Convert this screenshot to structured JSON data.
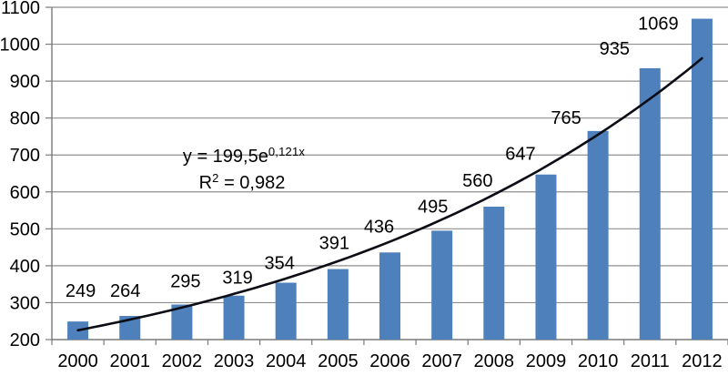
{
  "chart_data": {
    "type": "bar",
    "title": "",
    "xlabel": "",
    "ylabel": "",
    "categories": [
      "2000",
      "2001",
      "2002",
      "2003",
      "2004",
      "2005",
      "2006",
      "2007",
      "2008",
      "2009",
      "2010",
      "2011",
      "2012"
    ],
    "values": [
      249,
      264,
      295,
      319,
      354,
      391,
      436,
      495,
      560,
      647,
      765,
      935,
      1069
    ],
    "data_labels": [
      "249",
      "264",
      "295",
      "319",
      "354",
      "391",
      "436",
      "495",
      "560",
      "647",
      "765",
      "935",
      "1069"
    ],
    "ylim": [
      200,
      1100
    ],
    "ytick_step": 100,
    "yticks": [
      "200",
      "300",
      "400",
      "500",
      "600",
      "700",
      "800",
      "900",
      "1000",
      "1100"
    ],
    "grid": true,
    "legend": "none",
    "bar_color": "#4E80BC",
    "gridline_color": "#8f8f8f",
    "axis_color": "#7a7a7a",
    "text_color": "#000000",
    "trendline": {
      "type": "exponential",
      "a": 199.5,
      "b": 0.121,
      "color": "#0c0c15",
      "annotation": {
        "line1_base": "y = 199,5e",
        "line1_sup": "0,121x",
        "line2_base": "R",
        "line2_sup": "2",
        "line2_rest": " = 0,982"
      }
    }
  }
}
